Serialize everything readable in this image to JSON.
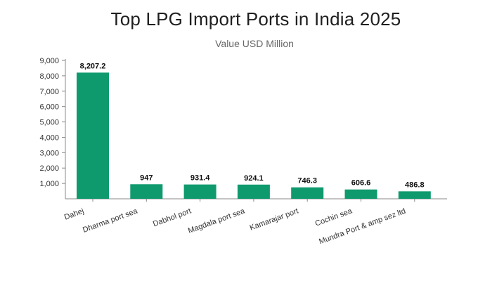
{
  "chart_data": {
    "type": "bar",
    "title": "Top LPG Import Ports in India 2025",
    "subtitle": "Value USD Million",
    "xlabel": "",
    "ylabel": "",
    "categories": [
      "Dahej",
      "Dharma port sea",
      "Dabhol port",
      "Magdala port sea",
      "Kamarajar port",
      "Cochin sea",
      "Mundra Port & amp sez ltd"
    ],
    "values": [
      8207.2,
      947,
      931.4,
      924.1,
      746.3,
      606.6,
      486.8
    ],
    "value_labels": [
      "8,207.2",
      "947",
      "931.4",
      "924.1",
      "746.3",
      "606.6",
      "486.8"
    ],
    "ylim": [
      0,
      9000
    ],
    "yticks": [
      1000,
      2000,
      3000,
      4000,
      5000,
      6000,
      7000,
      8000,
      9000
    ],
    "ytick_labels": [
      "1,000",
      "2,000",
      "3,000",
      "4,000",
      "5,000",
      "6,000",
      "7,000",
      "8,000",
      "9,000"
    ],
    "grid": false,
    "bar_color": "#0f9a6e"
  }
}
